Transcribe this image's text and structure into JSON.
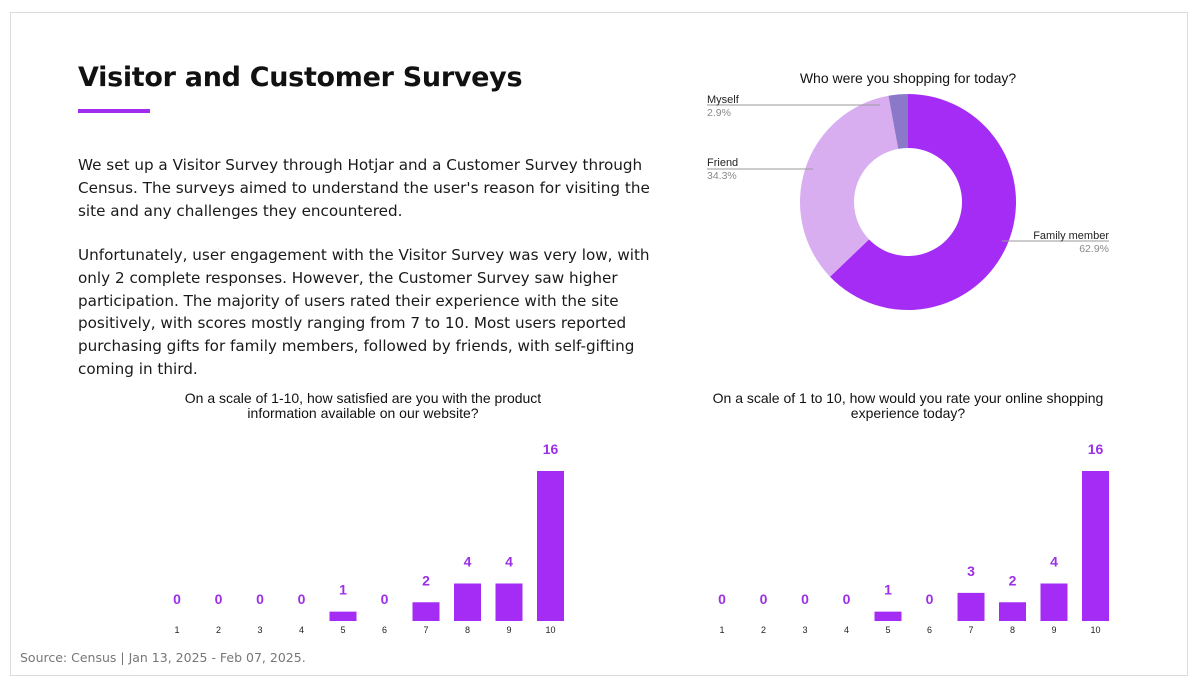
{
  "slide": {
    "title": "Visitor and Customer Surveys",
    "paragraph1": "We set up a Visitor Survey through Hotjar and a Customer Survey through Census. The surveys aimed to understand the user's reason for visiting the site and any challenges they encountered.",
    "paragraph2": "Unfortunately, user engagement with the Visitor Survey was very low, with only 2 complete responses. However, the Customer Survey saw higher participation. The majority of users rated their experience with the site positively, with scores mostly ranging from 7 to 10. Most users reported purchasing gifts for family members, followed by friends, with self-gifting coming in third.",
    "source": "Source: Census | Jan 13, 2025 - Feb 07, 2025.",
    "accent_color": "#a12cf0"
  },
  "chart_data": [
    {
      "type": "pie",
      "donut": true,
      "title": "Who were you shopping for today?",
      "labels": [
        "Family member",
        "Friend",
        "Myself"
      ],
      "values": [
        62.9,
        34.3,
        2.9
      ],
      "value_labels": [
        "62.9%",
        "34.3%",
        "2.9%"
      ],
      "colors": [
        "#a52cf5",
        "#d8aef0",
        "#8b78c9"
      ]
    },
    {
      "type": "bar",
      "title_lines": [
        "On a scale of 1-10, how satisfied are you with the product",
        "information available on our website?"
      ],
      "categories": [
        "1",
        "2",
        "3",
        "4",
        "5",
        "6",
        "7",
        "8",
        "9",
        "10"
      ],
      "values": [
        0,
        0,
        0,
        0,
        1,
        0,
        2,
        4,
        4,
        16
      ],
      "color": "#a52cf5",
      "label_color": "#9b30e6"
    },
    {
      "type": "bar",
      "title_lines": [
        "On a scale of 1 to 10, how would you rate your online shopping",
        "experience today?"
      ],
      "categories": [
        "1",
        "2",
        "3",
        "4",
        "5",
        "6",
        "7",
        "8",
        "9",
        "10"
      ],
      "values": [
        0,
        0,
        0,
        0,
        1,
        0,
        3,
        2,
        4,
        16
      ],
      "color": "#a52cf5",
      "label_color": "#9b30e6"
    }
  ]
}
